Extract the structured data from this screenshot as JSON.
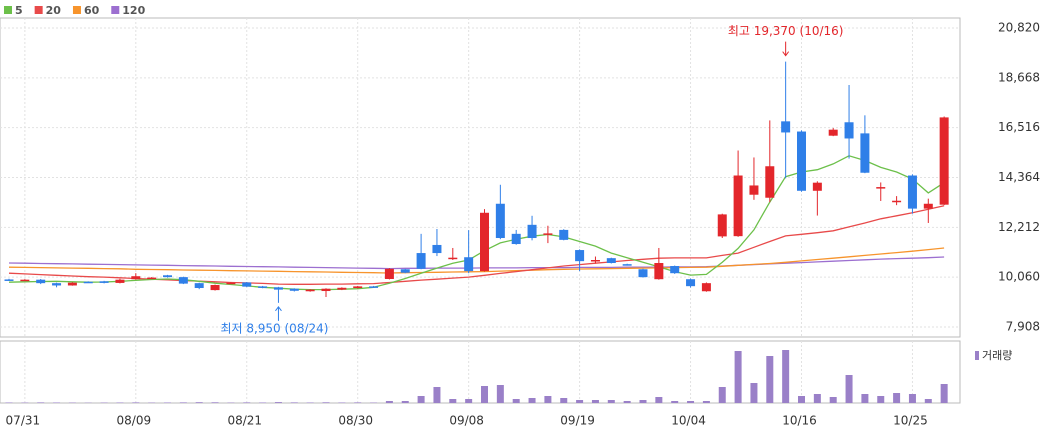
{
  "chart_data": {
    "type": "candlestick",
    "categories": [
      null,
      "07/31",
      null,
      null,
      null,
      null,
      null,
      null,
      "08/09",
      null,
      null,
      null,
      null,
      null,
      null,
      "08/21",
      null,
      null,
      null,
      null,
      null,
      null,
      "08/30",
      null,
      null,
      null,
      null,
      null,
      null,
      "09/08",
      null,
      null,
      null,
      null,
      null,
      null,
      "09/19",
      null,
      null,
      null,
      null,
      null,
      null,
      "10/04",
      null,
      null,
      null,
      null,
      null,
      null,
      "10/16",
      null,
      null,
      null,
      null,
      null,
      null,
      "10/25",
      null,
      null
    ],
    "open": [
      9960,
      9930,
      9950,
      9800,
      9700,
      9860,
      9880,
      9810,
      9970,
      10010,
      10140,
      10060,
      9800,
      9500,
      9790,
      9830,
      9660,
      9620,
      9560,
      9450,
      9460,
      9520,
      9590,
      9660,
      9980,
      10400,
      11100,
      11450,
      10840,
      10920,
      10320,
      13230,
      11930,
      12320,
      11900,
      12100,
      11230,
      10780,
      10880,
      10620,
      10400,
      9970,
      10540,
      9970,
      9450,
      11820,
      11830,
      13620,
      13490,
      16790,
      16350,
      13790,
      16170,
      16750,
      16270,
      13920,
      13340,
      14450,
      13020,
      13190
    ],
    "high": [
      9990,
      9970,
      9980,
      9820,
      9840,
      9880,
      9900,
      9990,
      10230,
      10060,
      10160,
      10080,
      9820,
      9740,
      9840,
      9850,
      9680,
      9640,
      9580,
      9540,
      9580,
      9620,
      9680,
      9680,
      10450,
      10420,
      11930,
      12140,
      11320,
      12090,
      13000,
      14050,
      12100,
      12710,
      12280,
      12130,
      11260,
      10950,
      10900,
      10640,
      10420,
      11320,
      10560,
      10000,
      9830,
      12800,
      15530,
      15230,
      16830,
      19370,
      16400,
      14200,
      16500,
      18360,
      17050,
      14150,
      13560,
      14500,
      13450,
      17000
    ],
    "low": [
      9900,
      9910,
      9760,
      9620,
      9690,
      9820,
      9790,
      9790,
      9950,
      9990,
      10040,
      9760,
      9540,
      9480,
      9770,
      9630,
      9580,
      8950,
      9440,
      9430,
      9200,
      9500,
      9570,
      9600,
      9960,
      10230,
      10400,
      10970,
      10800,
      10230,
      10300,
      11700,
      11460,
      11650,
      11530,
      11650,
      10320,
      10650,
      10650,
      10560,
      10040,
      9950,
      10200,
      9610,
      9430,
      11750,
      11800,
      13400,
      13300,
      14330,
      13750,
      12720,
      16150,
      15180,
      14550,
      13350,
      13170,
      12800,
      12400,
      13170
    ],
    "close": [
      9930,
      9950,
      9800,
      9700,
      9820,
      9840,
      9810,
      9950,
      10100,
      10040,
      10060,
      9780,
      9590,
      9720,
      9820,
      9650,
      9600,
      9520,
      9470,
      9520,
      9560,
      9600,
      9660,
      9620,
      10420,
      10250,
      10420,
      11100,
      10900,
      10320,
      12840,
      11750,
      11490,
      11750,
      11950,
      11670,
      10750,
      10800,
      10670,
      10580,
      10060,
      10670,
      10230,
      9670,
      9800,
      12770,
      14450,
      14020,
      14850,
      16310,
      13790,
      14140,
      16430,
      16050,
      14570,
      13950,
      13360,
      13020,
      13230,
      16960
    ],
    "up_color": "#e3262b",
    "down_color": "#2f7fe8",
    "series": [
      {
        "name": "5",
        "color": "#6cc04a",
        "values": [
          9840,
          9860,
          9870,
          9880,
          9860,
          9840,
          9850,
          9880,
          9920,
          9960,
          9980,
          9950,
          9880,
          9800,
          9740,
          9680,
          9620,
          9580,
          9540,
          9520,
          9520,
          9540,
          9560,
          9620,
          9800,
          10000,
          10230,
          10450,
          10660,
          10800,
          11200,
          11540,
          11700,
          11830,
          11900,
          11800,
          11600,
          11400,
          11100,
          10900,
          10700,
          10500,
          10300,
          10150,
          10180,
          10700,
          11300,
          12100,
          13300,
          14400,
          14600,
          14700,
          14950,
          15300,
          15100,
          14800,
          14600,
          14300,
          13700,
          14140
        ]
      },
      {
        "name": "20",
        "color": "#e84a4a",
        "values": [
          10230,
          10200,
          10170,
          10140,
          10110,
          10080,
          10060,
          10030,
          10000,
          9970,
          9940,
          9910,
          9890,
          9860,
          9830,
          9810,
          9790,
          9760,
          9750,
          9750,
          9760,
          9760,
          9770,
          9780,
          9830,
          9880,
          9930,
          9970,
          10020,
          10060,
          10140,
          10220,
          10300,
          10380,
          10460,
          10540,
          10600,
          10660,
          10720,
          10780,
          10830,
          10880,
          10890,
          10890,
          10890,
          11000,
          11100,
          11350,
          11600,
          11840,
          11910,
          11980,
          12060,
          12230,
          12400,
          12580,
          12710,
          12840,
          12990,
          13140
        ]
      },
      {
        "name": "60",
        "color": "#f7942c",
        "values": [
          10490,
          10480,
          10470,
          10460,
          10450,
          10440,
          10430,
          10420,
          10400,
          10390,
          10380,
          10370,
          10360,
          10350,
          10340,
          10330,
          10320,
          10310,
          10300,
          10290,
          10280,
          10270,
          10260,
          10250,
          10240,
          10250,
          10260,
          10270,
          10280,
          10290,
          10300,
          10320,
          10340,
          10360,
          10380,
          10400,
          10410,
          10420,
          10430,
          10440,
          10450,
          10460,
          10470,
          10480,
          10490,
          10530,
          10570,
          10610,
          10650,
          10700,
          10760,
          10820,
          10880,
          10940,
          11000,
          11060,
          11120,
          11180,
          11250,
          11320
        ]
      },
      {
        "name": "120",
        "color": "#9c6fd0",
        "values": [
          10670,
          10660,
          10650,
          10640,
          10630,
          10620,
          10610,
          10600,
          10590,
          10580,
          10570,
          10560,
          10550,
          10540,
          10530,
          10520,
          10510,
          10500,
          10490,
          10480,
          10470,
          10460,
          10450,
          10440,
          10430,
          10440,
          10440,
          10450,
          10450,
          10450,
          10460,
          10460,
          10460,
          10470,
          10470,
          10470,
          10480,
          10480,
          10480,
          10490,
          10490,
          10490,
          10500,
          10500,
          10510,
          10540,
          10570,
          10600,
          10630,
          10660,
          10690,
          10720,
          10750,
          10780,
          10810,
          10840,
          10860,
          10880,
          10900,
          10930
        ]
      }
    ],
    "volume": {
      "name": "거래량",
      "color": "#9a80c8",
      "ylim": [
        0,
        6200
      ],
      "values": [
        50,
        40,
        60,
        50,
        40,
        30,
        40,
        50,
        60,
        40,
        50,
        60,
        80,
        70,
        40,
        60,
        50,
        90,
        60,
        50,
        70,
        50,
        60,
        40,
        200,
        200,
        700,
        1600,
        400,
        400,
        1700,
        1800,
        400,
        500,
        700,
        500,
        300,
        300,
        300,
        200,
        300,
        600,
        200,
        200,
        200,
        1600,
        5200,
        2000,
        4700,
        5300,
        700,
        900,
        600,
        2800,
        900,
        700,
        1000,
        900,
        400,
        1900
      ]
    },
    "ylim": [
      7474,
      21254
    ],
    "yticks": [
      {
        "value": 7908,
        "label": "7,908"
      },
      {
        "value": 10060,
        "label": "10,060"
      },
      {
        "value": 12212,
        "label": "12,212"
      },
      {
        "value": 14364,
        "label": "14,364"
      },
      {
        "value": 16516,
        "label": "16,516"
      },
      {
        "value": 18668,
        "label": "18,668"
      },
      {
        "value": 20820,
        "label": "20,820"
      }
    ],
    "grid": true,
    "annotations": [
      {
        "text": "최고 19,370 (10/16)",
        "index": 49,
        "value": 19370,
        "color": "#e3262b",
        "direction": "down"
      },
      {
        "text": "최저 8,950 (08/24)",
        "index": 17,
        "value": 8950,
        "color": "#2f7fe8",
        "direction": "up"
      }
    ]
  }
}
